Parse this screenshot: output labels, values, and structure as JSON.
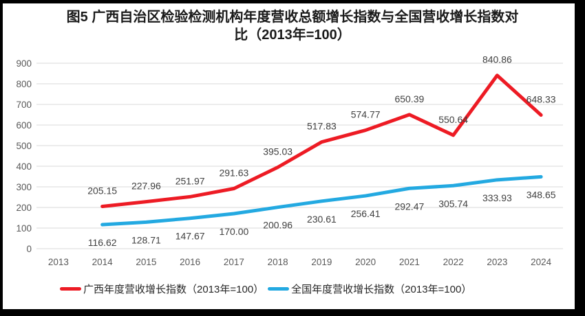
{
  "title": {
    "lines": [
      "图5  广西自治区检验检测机构年度营收总额增长指数与全国营收增长指数对",
      "比（2013年=100）"
    ]
  },
  "chart_data": {
    "type": "line",
    "title": "图5 广西自治区检验检测机构年度营收总额增长指数与全国营收增长指数对比（2013年=100）",
    "categories": [
      "2013",
      "2014",
      "2015",
      "2016",
      "2017",
      "2018",
      "2019",
      "2020",
      "2021",
      "2022",
      "2023",
      "2024"
    ],
    "series": [
      {
        "name": "广西年度营收增长指数（2013年=100）",
        "color": "#ED1B24",
        "values": [
          null,
          205.15,
          227.96,
          251.97,
          291.63,
          395.03,
          517.83,
          574.77,
          650.39,
          550.64,
          840.86,
          648.33
        ]
      },
      {
        "name": "全国年度营收增长指数（2013年=100）",
        "color": "#23A9E1",
        "values": [
          null,
          116.62,
          128.71,
          147.67,
          170.0,
          200.96,
          230.61,
          256.41,
          292.47,
          305.74,
          333.93,
          348.65
        ]
      }
    ],
    "xlabel": "",
    "ylabel": "",
    "ylim": [
      0,
      900
    ],
    "ytick_step": 100,
    "grid": true,
    "legend_position": "bottom",
    "data_labels": "two-decimal"
  },
  "colors": {
    "gridline": "#D9D9D9",
    "axis_text": "#595959",
    "data_label_text": "#404040",
    "frame": "#000000",
    "background": "#FFFFFF"
  }
}
